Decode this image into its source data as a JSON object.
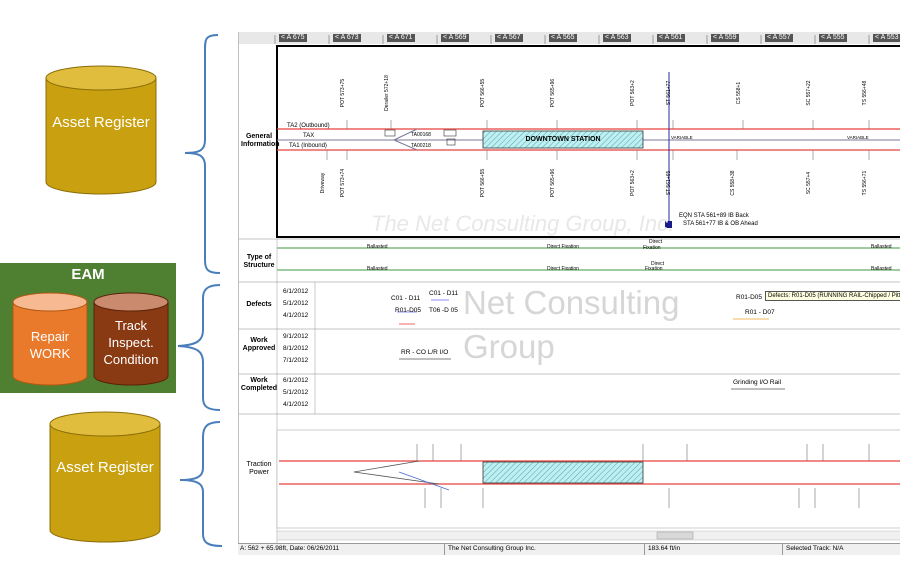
{
  "cylinders": {
    "asset_register_top": "Asset Register",
    "asset_register_bottom": "Asset Register",
    "repair_work": "Repair WORK",
    "track_inspect": "Track Inspect. Condition"
  },
  "eam_title": "EAM",
  "ruler": {
    "stations": [
      "< A 675",
      "< A 673",
      "< A 671",
      "< A 569",
      "< A 567",
      "< A 565",
      "< A 563",
      "< A 561",
      "< A 559",
      "< A 557",
      "< A 555",
      "< A 553"
    ]
  },
  "row_labels": {
    "general": "General Information",
    "structure": "Type of Structure",
    "defects": "Defects",
    "work_approved": "Work Approved",
    "work_completed": "Work Completed",
    "traction": "Traction Power"
  },
  "general_info": {
    "station_name": "DOWNTOWN STATION",
    "track_labels": [
      "TA2 (Outbound)",
      "TAX",
      "TA1 (Inbound)"
    ],
    "switch_labels": [
      "TA00168",
      "TA00218"
    ],
    "upper_posts": [
      "POT 573+75",
      "Derailer 572+18",
      "POT 566+55",
      "POT 565+96",
      "POT 563+2",
      "ST 561+77",
      "CS 558+1",
      "SC 557+22",
      "TS 556+48"
    ],
    "lower_posts": [
      "Driveway",
      "POT 573+74",
      "POT 566+55",
      "POT 565+96",
      "POT 563+2",
      "ST 561+65",
      "CS 558+38",
      "SC 557+4",
      "TS 556+71"
    ],
    "variable_left": "VARIABLE",
    "variable_right": "VARIABLE",
    "eqn_text_1": "EQN STA 561+89 IB Back",
    "eqn_text_2": "STA 561+77 IB & OB Ahead"
  },
  "structure": {
    "ballasted": "Ballasted",
    "direct_fixation": "Direct Fixation",
    "direct_label": "Direct",
    "fixation_label": "Fixation"
  },
  "defects": {
    "dates": [
      "6/1/2012",
      "5/1/2012",
      "4/1/2012"
    ],
    "items": [
      "C01 - D11",
      "C01 - D11",
      "R01-D05",
      "T06 -D 05",
      "R01-D05",
      "R01 - D07"
    ],
    "tooltip": "Defects: R01-D05 (RUNNING RAIL-Chipped / Pitted)"
  },
  "work_approved": {
    "dates": [
      "9/1/2012",
      "8/1/2012",
      "7/1/2012"
    ],
    "item": "RR - CO L/R I/O"
  },
  "work_completed": {
    "dates": [
      "6/1/2012",
      "5/1/2012",
      "4/1/2012"
    ],
    "item": "Grinding I/O Rail"
  },
  "watermarks": {
    "line1": "Net Consulting",
    "line2": "Group",
    "top": "The Net Consulting Group, Inc."
  },
  "status_bar": {
    "position": "A: 562 + 65.98ft, Date: 06/26/2011",
    "company": "The Net Consulting Group Inc.",
    "scale": "183.64 ft/in",
    "selected": "Selected Track: N/A"
  },
  "colors": {
    "brace": "#4a7ebb",
    "cylinder_gold": "#c9a010",
    "cylinder_gold_top": "#e0bd3c",
    "eam_green": "#4f7f31",
    "repair_orange": "#e97a2c",
    "track_brown": "#8a3a12",
    "rail_red": "#e8413e",
    "structure_green": "#3f9a3f"
  }
}
